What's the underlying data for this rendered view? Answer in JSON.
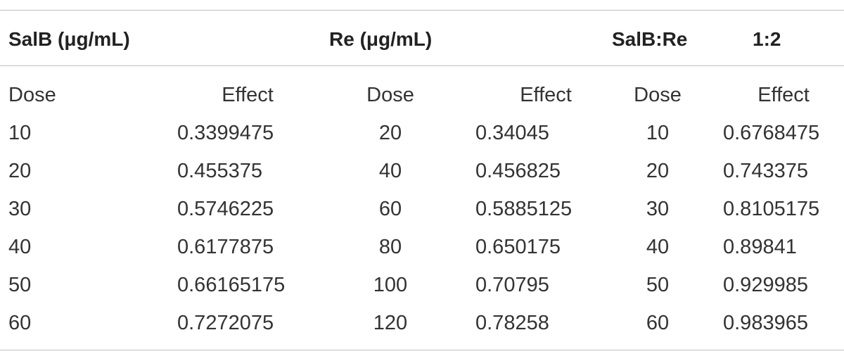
{
  "table": {
    "group_headers": [
      {
        "label": "SalB (μg/mL)"
      },
      {
        "label": "Re (μg/mL)"
      },
      {
        "label": "SalB:Re"
      },
      {
        "label": "1:2"
      }
    ],
    "column_headers": [
      "Dose",
      "Effect",
      "Dose",
      "Effect",
      "Dose",
      "Effect"
    ],
    "rows": [
      [
        "10",
        "0.3399475",
        "20",
        "0.34045",
        "10",
        "0.6768475"
      ],
      [
        "20",
        "0.455375",
        "40",
        "0.456825",
        "20",
        "0.743375"
      ],
      [
        "30",
        "0.5746225",
        "60",
        "0.5885125",
        "30",
        "0.8105175"
      ],
      [
        "40",
        "0.6177875",
        "80",
        "0.650175",
        "40",
        "0.89841"
      ],
      [
        "50",
        "0.66165175",
        "100",
        "0.70795",
        "50",
        "0.929985"
      ],
      [
        "60",
        "0.7272075",
        "120",
        "0.78258",
        "60",
        "0.983965"
      ]
    ]
  }
}
